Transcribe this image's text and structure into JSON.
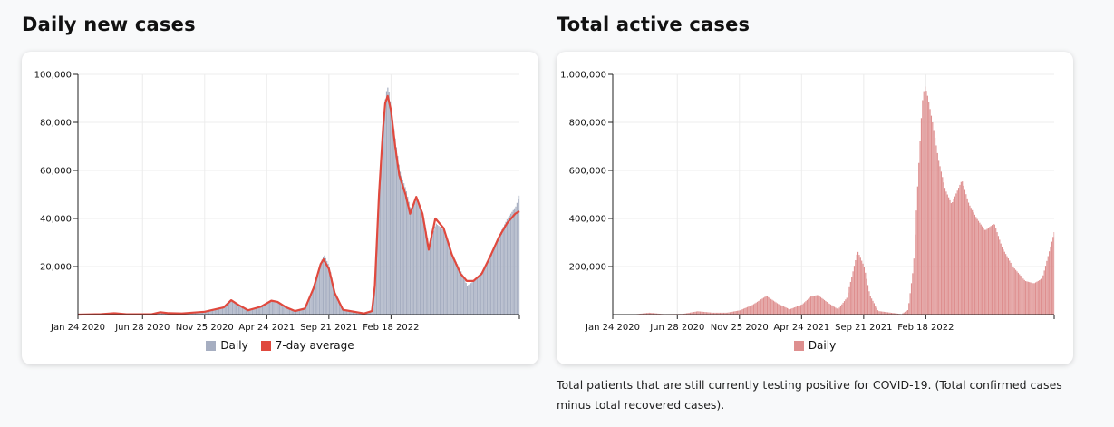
{
  "charts": {
    "daily": {
      "title": "Daily new cases",
      "legend": [
        {
          "label": "Daily",
          "color": "#a6aec1"
        },
        {
          "label": "7-day average",
          "color": "#e0493e"
        }
      ]
    },
    "active": {
      "title": "Total active cases",
      "legend": [
        {
          "label": "Daily",
          "color": "#de8f8f"
        }
      ],
      "note": "Total patients that are still currently testing positive for COVID-19. (Total confirmed cases minus total recovered cases)."
    }
  },
  "chart_data": [
    {
      "type": "bar",
      "title": "Daily new cases",
      "x_ticks": [
        "Jan 24 2020",
        "Jun 28 2020",
        "Nov 25 2020",
        "Apr 24 2021",
        "Sep 21 2021",
        "Feb 18 2022"
      ],
      "x_range": [
        "Jan 24 2020",
        "Dec 25 2022"
      ],
      "y_ticks": [
        "20,000",
        "40,000",
        "60,000",
        "80,000",
        "100,000"
      ],
      "ylim": [
        0,
        100000
      ],
      "grid": true,
      "legend_placement": "bottom",
      "series": [
        {
          "name": "Daily",
          "color": "#a6aec1",
          "points": [
            [
              "Jan 24 2020",
              0
            ],
            [
              "Mar 20 2020",
              300
            ],
            [
              "Apr 20 2020",
              700
            ],
            [
              "May 20 2020",
              150
            ],
            [
              "Jul 20 2020",
              150
            ],
            [
              "Aug 10 2020",
              1100
            ],
            [
              "Aug 30 2020",
              700
            ],
            [
              "Oct 01 2020",
              500
            ],
            [
              "Nov 25 2020",
              1200
            ],
            [
              "Jan 10 2021",
              3000
            ],
            [
              "Jan 28 2021",
              6000
            ],
            [
              "Feb 15 2021",
              4000
            ],
            [
              "Mar 10 2021",
              1800
            ],
            [
              "Apr 10 2021",
              3500
            ],
            [
              "May 05 2021",
              6000
            ],
            [
              "May 20 2021",
              5500
            ],
            [
              "Jun 10 2021",
              3000
            ],
            [
              "Jul 01 2021",
              1500
            ],
            [
              "Jul 25 2021",
              2500
            ],
            [
              "Aug 15 2021",
              12000
            ],
            [
              "Sep 01 2021",
              22000
            ],
            [
              "Sep 08 2021",
              25000
            ],
            [
              "Sep 21 2021",
              20000
            ],
            [
              "Oct 05 2021",
              9000
            ],
            [
              "Oct 25 2021",
              2000
            ],
            [
              "Dec 15 2021",
              500
            ],
            [
              "Jan 03 2022",
              2000
            ],
            [
              "Jan 10 2022",
              15000
            ],
            [
              "Jan 20 2022",
              55000
            ],
            [
              "Jan 30 2022",
              80000
            ],
            [
              "Feb 04 2022",
              92000
            ],
            [
              "Feb 10 2022",
              95000
            ],
            [
              "Feb 18 2022",
              85000
            ],
            [
              "Feb 28 2022",
              72000
            ],
            [
              "Mar 10 2022",
              60000
            ],
            [
              "Mar 25 2022",
              52000
            ],
            [
              "Apr 05 2022",
              44000
            ],
            [
              "Apr 20 2022",
              48000
            ],
            [
              "May 05 2022",
              42000
            ],
            [
              "May 20 2022",
              28000
            ],
            [
              "Jun 05 2022",
              38000
            ],
            [
              "Jun 25 2022",
              35000
            ],
            [
              "Jul 15 2022",
              25000
            ],
            [
              "Aug 05 2022",
              18000
            ],
            [
              "Aug 20 2022",
              12000
            ],
            [
              "Sep 05 2022",
              14000
            ],
            [
              "Sep 25 2022",
              18000
            ],
            [
              "Oct 15 2022",
              25000
            ],
            [
              "Nov 05 2022",
              33000
            ],
            [
              "Nov 25 2022",
              40000
            ],
            [
              "Dec 15 2022",
              45000
            ],
            [
              "Dec 25 2022",
              50000
            ]
          ]
        },
        {
          "name": "7-day average",
          "color": "#e0493e",
          "type": "line",
          "points": [
            [
              "Jan 24 2020",
              0
            ],
            [
              "Mar 20 2020",
              200
            ],
            [
              "Apr 20 2020",
              600
            ],
            [
              "May 20 2020",
              150
            ],
            [
              "Jul 20 2020",
              150
            ],
            [
              "Aug 10 2020",
              1000
            ],
            [
              "Aug 30 2020",
              600
            ],
            [
              "Oct 01 2020",
              500
            ],
            [
              "Nov 25 2020",
              1200
            ],
            [
              "Jan 10 2021",
              3000
            ],
            [
              "Jan 28 2021",
              6000
            ],
            [
              "Feb 15 2021",
              4000
            ],
            [
              "Mar 10 2021",
              1800
            ],
            [
              "Apr 10 2021",
              3300
            ],
            [
              "May 05 2021",
              5800
            ],
            [
              "May 20 2021",
              5300
            ],
            [
              "Jun 10 2021",
              3000
            ],
            [
              "Jul 01 2021",
              1500
            ],
            [
              "Jul 25 2021",
              2500
            ],
            [
              "Aug 15 2021",
              11000
            ],
            [
              "Sep 01 2021",
              21000
            ],
            [
              "Sep 08 2021",
              23000
            ],
            [
              "Sep 21 2021",
              19000
            ],
            [
              "Oct 05 2021",
              9000
            ],
            [
              "Oct 25 2021",
              2000
            ],
            [
              "Dec 15 2021",
              500
            ],
            [
              "Jan 03 2022",
              1500
            ],
            [
              "Jan 10 2022",
              12000
            ],
            [
              "Jan 20 2022",
              50000
            ],
            [
              "Jan 30 2022",
              78000
            ],
            [
              "Feb 04 2022",
              88000
            ],
            [
              "Feb 10 2022",
              91000
            ],
            [
              "Feb 18 2022",
              85000
            ],
            [
              "Feb 28 2022",
              70000
            ],
            [
              "Mar 10 2022",
              58000
            ],
            [
              "Mar 25 2022",
              50000
            ],
            [
              "Apr 05 2022",
              42000
            ],
            [
              "Apr 20 2022",
              49000
            ],
            [
              "May 05 2022",
              42000
            ],
            [
              "May 20 2022",
              27000
            ],
            [
              "Jun 05 2022",
              40000
            ],
            [
              "Jun 25 2022",
              36000
            ],
            [
              "Jul 15 2022",
              25000
            ],
            [
              "Aug 05 2022",
              17000
            ],
            [
              "Aug 20 2022",
              14000
            ],
            [
              "Sep 05 2022",
              14000
            ],
            [
              "Sep 25 2022",
              17000
            ],
            [
              "Oct 15 2022",
              24000
            ],
            [
              "Nov 05 2022",
              32000
            ],
            [
              "Nov 25 2022",
              38000
            ],
            [
              "Dec 15 2022",
              42000
            ],
            [
              "Dec 25 2022",
              43000
            ]
          ]
        }
      ]
    },
    {
      "type": "bar",
      "title": "Total active cases",
      "x_ticks": [
        "Jan 24 2020",
        "Jun 28 2020",
        "Nov 25 2020",
        "Apr 24 2021",
        "Sep 21 2021",
        "Feb 18 2022"
      ],
      "x_range": [
        "Jan 24 2020",
        "Dec 25 2022"
      ],
      "y_ticks": [
        "200,000",
        "400,000",
        "600,000",
        "800,000",
        "1,000,000"
      ],
      "ylim": [
        0,
        1000000
      ],
      "grid": true,
      "legend_placement": "bottom",
      "series": [
        {
          "name": "Daily",
          "color": "#de8f8f",
          "points": [
            [
              "Jan 24 2020",
              0
            ],
            [
              "Mar 15 2020",
              1000
            ],
            [
              "Apr 20 2020",
              8000
            ],
            [
              "May 25 2020",
              2000
            ],
            [
              "Jul 10 2020",
              3000
            ],
            [
              "Aug 15 2020",
              14000
            ],
            [
              "Sep 20 2020",
              8000
            ],
            [
              "Oct 25 2020",
              8000
            ],
            [
              "Nov 25 2020",
              18000
            ],
            [
              "Dec 25 2020",
              40000
            ],
            [
              "Jan 28 2021",
              78000
            ],
            [
              "Feb 25 2021",
              45000
            ],
            [
              "Mar 25 2021",
              22000
            ],
            [
              "Apr 24 2021",
              42000
            ],
            [
              "May 15 2021",
              75000
            ],
            [
              "Jun 01 2021",
              82000
            ],
            [
              "Jun 25 2021",
              50000
            ],
            [
              "Jul 20 2021",
              22000
            ],
            [
              "Aug 10 2021",
              70000
            ],
            [
              "Aug 25 2021",
              180000
            ],
            [
              "Sep 05 2021",
              265000
            ],
            [
              "Sep 21 2021",
              200000
            ],
            [
              "Oct 05 2021",
              80000
            ],
            [
              "Oct 25 2021",
              15000
            ],
            [
              "Dec 20 2021",
              2000
            ],
            [
              "Jan 05 2022",
              20000
            ],
            [
              "Jan 18 2022",
              200000
            ],
            [
              "Jan 30 2022",
              600000
            ],
            [
              "Feb 08 2022",
              880000
            ],
            [
              "Feb 14 2022",
              955000
            ],
            [
              "Feb 20 2022",
              920000
            ],
            [
              "Mar 05 2022",
              800000
            ],
            [
              "Mar 20 2022",
              640000
            ],
            [
              "Apr 05 2022",
              520000
            ],
            [
              "Apr 20 2022",
              460000
            ],
            [
              "May 05 2022",
              520000
            ],
            [
              "May 15 2022",
              560000
            ],
            [
              "Jun 01 2022",
              460000
            ],
            [
              "Jun 20 2022",
              400000
            ],
            [
              "Jul 10 2022",
              350000
            ],
            [
              "Aug 01 2022",
              380000
            ],
            [
              "Aug 20 2022",
              280000
            ],
            [
              "Sep 15 2022",
              200000
            ],
            [
              "Oct 15 2022",
              140000
            ],
            [
              "Nov 05 2022",
              130000
            ],
            [
              "Nov 25 2022",
              150000
            ],
            [
              "Dec 10 2022",
              250000
            ],
            [
              "Dec 25 2022",
              350000
            ]
          ]
        }
      ]
    }
  ]
}
